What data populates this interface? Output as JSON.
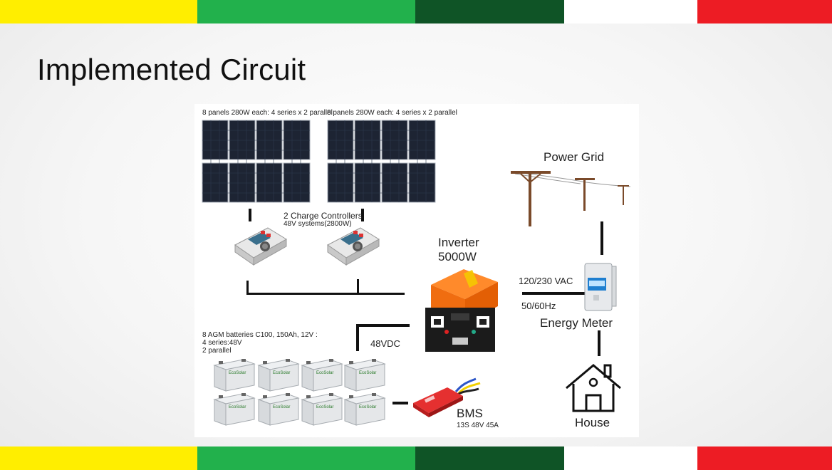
{
  "slide": {
    "title": "Implemented Circuit",
    "stripe_colors": [
      "#ffee00",
      "#22b14c",
      "#0f5426",
      "#ffffff",
      "#ed1c24"
    ]
  },
  "diagram": {
    "solar_array_left": {
      "label": "8 panels 280W each: 4 series x 2 parallel",
      "icon": "solar-panel-icon"
    },
    "solar_array_right": {
      "label": "8 panels 280W each: 4 series x 2 parallel",
      "icon": "solar-panel-icon"
    },
    "charge_controllers": {
      "label_line1": "2 Charge Controllers",
      "label_line2": "48V systems(2800W)",
      "icon": "charge-controller-icon"
    },
    "inverter": {
      "label_line1": "Inverter",
      "label_line2": "5000W",
      "icon": "inverter-icon"
    },
    "power_grid": {
      "label": "Power Grid",
      "icon": "power-pole-icon"
    },
    "ac_spec": {
      "voltage": "120/230 VAC",
      "frequency": "50/60Hz"
    },
    "energy_meter": {
      "label": "Energy Meter",
      "icon": "energy-meter-icon"
    },
    "dc_bus": {
      "label": "48VDC"
    },
    "batteries": {
      "label_line1": "8 AGM batteries C100, 150Ah, 12V :",
      "label_line2": "4 series:48V",
      "label_line3": "2 parallel",
      "brand": "EcoSolar",
      "icon": "battery-icon"
    },
    "bms": {
      "label": "BMS",
      "spec": "13S 48V 45A",
      "icon": "bms-icon"
    },
    "house": {
      "label": "House",
      "icon": "house-icon"
    }
  }
}
